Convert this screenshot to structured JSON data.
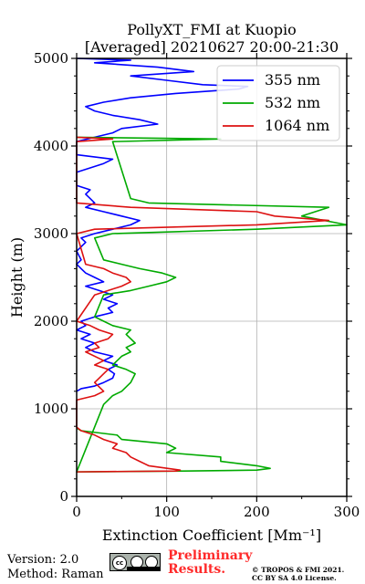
{
  "chart_data": {
    "type": "line",
    "title_line1": "PollyXT_FMI at Kuopio",
    "title_line2": "[Averaged] 20210627 20:00-21:30",
    "xlabel": "Extinction Coefficient [Mm⁻¹]",
    "ylabel": "Height (m)",
    "xlim": [
      0,
      300
    ],
    "ylim": [
      0,
      5000
    ],
    "xticks": [
      0,
      100,
      200,
      300
    ],
    "yticks": [
      0,
      1000,
      2000,
      3000,
      4000,
      5000
    ],
    "grid": true,
    "legend_position": "top-right",
    "series": [
      {
        "name": "355 nm",
        "color": "#0000ff",
        "points": [
          [
            0,
            1200
          ],
          [
            5,
            1230
          ],
          [
            20,
            1260
          ],
          [
            30,
            1300
          ],
          [
            40,
            1350
          ],
          [
            42,
            1400
          ],
          [
            35,
            1450
          ],
          [
            45,
            1500
          ],
          [
            30,
            1550
          ],
          [
            40,
            1600
          ],
          [
            20,
            1650
          ],
          [
            10,
            1700
          ],
          [
            20,
            1750
          ],
          [
            5,
            1800
          ],
          [
            15,
            1850
          ],
          [
            0,
            1900
          ],
          [
            10,
            1950
          ],
          [
            5,
            2000
          ],
          [
            20,
            2050
          ],
          [
            40,
            2100
          ],
          [
            35,
            2150
          ],
          [
            45,
            2200
          ],
          [
            30,
            2250
          ],
          [
            40,
            2300
          ],
          [
            25,
            2350
          ],
          [
            10,
            2400
          ],
          [
            30,
            2450
          ],
          [
            20,
            2500
          ],
          [
            10,
            2550
          ],
          [
            5,
            2600
          ],
          [
            0,
            2650
          ],
          [
            5,
            2700
          ],
          [
            0,
            2800
          ],
          [
            10,
            2900
          ],
          [
            5,
            2950
          ],
          [
            20,
            3000
          ],
          [
            40,
            3050
          ],
          [
            60,
            3100
          ],
          [
            70,
            3150
          ],
          [
            50,
            3200
          ],
          [
            30,
            3250
          ],
          [
            10,
            3300
          ],
          [
            20,
            3350
          ],
          [
            15,
            3400
          ],
          [
            10,
            3450
          ],
          [
            15,
            3500
          ],
          [
            0,
            3550
          ],
          [
            0,
            3700
          ],
          [
            30,
            3800
          ],
          [
            40,
            3850
          ],
          [
            0,
            3900
          ],
          [
            0,
            4050
          ],
          [
            20,
            4100
          ],
          [
            40,
            4150
          ],
          [
            50,
            4200
          ],
          [
            90,
            4250
          ],
          [
            70,
            4300
          ],
          [
            40,
            4350
          ],
          [
            20,
            4400
          ],
          [
            10,
            4450
          ],
          [
            30,
            4500
          ],
          [
            60,
            4550
          ],
          [
            110,
            4600
          ],
          [
            180,
            4650
          ],
          [
            190,
            4680
          ],
          [
            140,
            4700
          ],
          [
            100,
            4750
          ],
          [
            60,
            4800
          ],
          [
            130,
            4850
          ],
          [
            90,
            4900
          ],
          [
            20,
            4950
          ],
          [
            60,
            4980
          ],
          [
            0,
            5000
          ]
        ]
      },
      {
        "name": "532 nm",
        "color": "#00aa00",
        "points": [
          [
            0,
            780
          ],
          [
            5,
            750
          ],
          [
            45,
            700
          ],
          [
            50,
            650
          ],
          [
            100,
            600
          ],
          [
            110,
            550
          ],
          [
            100,
            500
          ],
          [
            160,
            450
          ],
          [
            160,
            400
          ],
          [
            200,
            350
          ],
          [
            215,
            320
          ],
          [
            200,
            300
          ],
          [
            120,
            290
          ],
          [
            0,
            280
          ],
          [
            30,
            1050
          ],
          [
            35,
            1100
          ],
          [
            40,
            1150
          ],
          [
            50,
            1200
          ],
          [
            60,
            1300
          ],
          [
            65,
            1400
          ],
          [
            55,
            1450
          ],
          [
            40,
            1500
          ],
          [
            50,
            1600
          ],
          [
            60,
            1650
          ],
          [
            55,
            1700
          ],
          [
            65,
            1750
          ],
          [
            60,
            1800
          ],
          [
            55,
            1850
          ],
          [
            60,
            1900
          ],
          [
            40,
            1950
          ],
          [
            30,
            2000
          ],
          [
            20,
            2050
          ],
          [
            30,
            2300
          ],
          [
            60,
            2350
          ],
          [
            80,
            2400
          ],
          [
            100,
            2450
          ],
          [
            110,
            2500
          ],
          [
            95,
            2550
          ],
          [
            70,
            2600
          ],
          [
            50,
            2650
          ],
          [
            30,
            2700
          ],
          [
            20,
            2950
          ],
          [
            40,
            3000
          ],
          [
            200,
            3050
          ],
          [
            300,
            3100
          ],
          [
            250,
            3200
          ],
          [
            280,
            3300
          ],
          [
            80,
            3350
          ],
          [
            60,
            3400
          ],
          [
            40,
            4050
          ],
          [
            160,
            4080
          ],
          [
            0,
            4100
          ]
        ]
      },
      {
        "name": "1064 nm",
        "color": "#dd1111",
        "points": [
          [
            0,
            280
          ],
          [
            110,
            290
          ],
          [
            115,
            300
          ],
          [
            80,
            350
          ],
          [
            70,
            400
          ],
          [
            60,
            450
          ],
          [
            55,
            500
          ],
          [
            40,
            550
          ],
          [
            45,
            600
          ],
          [
            30,
            650
          ],
          [
            20,
            700
          ],
          [
            5,
            750
          ],
          [
            0,
            790
          ],
          [
            0,
            1100
          ],
          [
            20,
            1150
          ],
          [
            30,
            1200
          ],
          [
            20,
            1300
          ],
          [
            25,
            1350
          ],
          [
            30,
            1400
          ],
          [
            35,
            1450
          ],
          [
            20,
            1500
          ],
          [
            30,
            1550
          ],
          [
            10,
            1650
          ],
          [
            25,
            1700
          ],
          [
            20,
            1750
          ],
          [
            35,
            1800
          ],
          [
            40,
            1850
          ],
          [
            25,
            1900
          ],
          [
            15,
            1950
          ],
          [
            0,
            2000
          ],
          [
            20,
            2300
          ],
          [
            35,
            2350
          ],
          [
            50,
            2400
          ],
          [
            60,
            2450
          ],
          [
            55,
            2500
          ],
          [
            40,
            2550
          ],
          [
            30,
            2600
          ],
          [
            10,
            2650
          ],
          [
            0,
            3000
          ],
          [
            20,
            3050
          ],
          [
            200,
            3100
          ],
          [
            280,
            3150
          ],
          [
            220,
            3200
          ],
          [
            200,
            3250
          ],
          [
            60,
            3300
          ],
          [
            0,
            3350
          ],
          [
            0,
            4050
          ],
          [
            40,
            4080
          ],
          [
            0,
            4100
          ]
        ]
      }
    ]
  },
  "footer": {
    "version": "Version: 2.0",
    "method": "Method: Raman",
    "preliminary_line1": "Preliminary",
    "preliminary_line2": "Results.",
    "copyright_line1": "© TROPOS & FMI 2021.",
    "copyright_line2": "CC BY SA 4.0 License."
  }
}
